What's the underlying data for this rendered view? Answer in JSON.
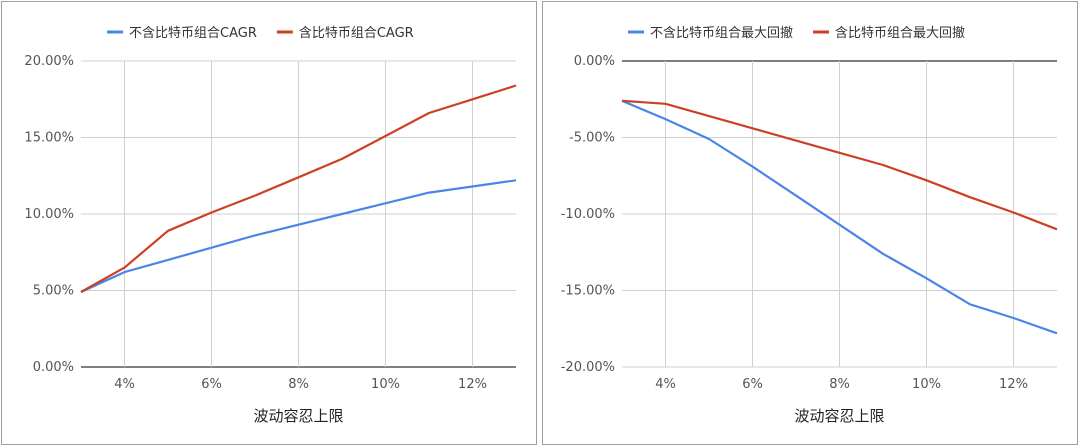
{
  "chart_data": [
    {
      "type": "line",
      "title": "",
      "xlabel": "波动容忍上限",
      "ylabel": "",
      "x": [
        0.03,
        0.04,
        0.05,
        0.06,
        0.07,
        0.08,
        0.09,
        0.1,
        0.11,
        0.12,
        0.13
      ],
      "xlim": [
        0.03,
        0.13
      ],
      "x_ticks": [
        "4%",
        "6%",
        "8%",
        "10%",
        "12%"
      ],
      "ylim": [
        0,
        20
      ],
      "y_ticks": [
        "0.00%",
        "5.00%",
        "10.00%",
        "15.00%",
        "20.00%"
      ],
      "grid": true,
      "legend": "top",
      "series": [
        {
          "name": "不含比特币组合CAGR",
          "color": "#4a86e8",
          "values": [
            4.9,
            6.2,
            7.0,
            7.8,
            8.6,
            9.3,
            10.0,
            10.7,
            11.4,
            11.8,
            12.2
          ]
        },
        {
          "name": "含比特币组合CAGR",
          "color": "#cc4125",
          "values": [
            4.9,
            6.5,
            8.9,
            10.1,
            11.2,
            12.4,
            13.6,
            15.1,
            16.6,
            17.5,
            18.4
          ]
        }
      ]
    },
    {
      "type": "line",
      "title": "",
      "xlabel": "波动容忍上限",
      "ylabel": "",
      "x": [
        0.03,
        0.04,
        0.05,
        0.06,
        0.07,
        0.08,
        0.09,
        0.1,
        0.11,
        0.12,
        0.13
      ],
      "xlim": [
        0.03,
        0.13
      ],
      "x_ticks": [
        "4%",
        "6%",
        "8%",
        "10%",
        "12%"
      ],
      "ylim": [
        -20,
        0
      ],
      "y_ticks": [
        "0.00%",
        "-5.00%",
        "-10.00%",
        "-15.00%",
        "-20.00%"
      ],
      "grid": true,
      "legend": "top",
      "series": [
        {
          "name": "不含比特币组合最大回撤",
          "color": "#4a86e8",
          "values": [
            -2.6,
            -3.8,
            -5.1,
            -6.9,
            -8.8,
            -10.7,
            -12.6,
            -14.2,
            -15.9,
            -16.8,
            -17.8
          ]
        },
        {
          "name": "含比特币组合最大回撤",
          "color": "#cc4125",
          "values": [
            -2.6,
            -2.8,
            -3.6,
            -4.4,
            -5.2,
            -6.0,
            -6.8,
            -7.8,
            -8.9,
            -9.9,
            -11.0
          ]
        }
      ]
    }
  ]
}
